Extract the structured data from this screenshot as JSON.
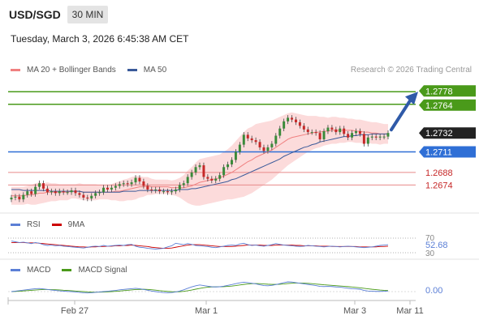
{
  "header": {
    "symbol": "USD/SGD",
    "timeframe": "30 MIN",
    "datetime": "Tuesday, March 3, 2026 6:45:38 AM CET",
    "credit": "Research © 2026 Trading Central"
  },
  "legends": {
    "main": [
      {
        "label": "MA 20 + Bollinger Bands",
        "color": "#f08080"
      },
      {
        "label": "MA 50",
        "color": "#3a5a9a"
      }
    ],
    "rsi": [
      {
        "label": "RSI",
        "color": "#5b7fd6"
      },
      {
        "label": "9MA",
        "color": "#cc0000"
      }
    ],
    "macd": [
      {
        "label": "MACD",
        "color": "#5b7fd6"
      },
      {
        "label": "MACD Signal",
        "color": "#4a9a1a"
      }
    ]
  },
  "colors": {
    "bull": "#3a8a3a",
    "bear": "#c62828",
    "target": "#4a9a1a",
    "pivot": "#2f6fd6",
    "support": "#e88a8a",
    "current": "#222222",
    "arrow": "#2f5aa8",
    "band": "#fbd5d5"
  },
  "chart_data": [
    {
      "type": "candlestick",
      "name": "price",
      "ylim": [
        1.265,
        1.279
      ],
      "x_labels": [
        "Feb 27",
        "Mar 1",
        "Mar 3",
        "Mar 11"
      ],
      "levels": [
        {
          "value": 1.2778,
          "label": "1.2778",
          "kind": "target"
        },
        {
          "value": 1.2764,
          "label": "1.2764",
          "kind": "target"
        },
        {
          "value": 1.2732,
          "label": "1.2732",
          "kind": "current"
        },
        {
          "value": 1.2711,
          "label": "1.2711",
          "kind": "pivot"
        },
        {
          "value": 1.2688,
          "label": "1.2688",
          "kind": "support"
        },
        {
          "value": 1.2674,
          "label": "1.2674",
          "kind": "support"
        }
      ],
      "closes": [
        1.266,
        1.2661,
        1.2658,
        1.2663,
        1.2667,
        1.2664,
        1.2672,
        1.2676,
        1.267,
        1.2666,
        1.2667,
        1.2665,
        1.2667,
        1.2666,
        1.2666,
        1.2668,
        1.2665,
        1.2663,
        1.266,
        1.2659,
        1.2662,
        1.2665,
        1.2666,
        1.2671,
        1.2669,
        1.2671,
        1.2673,
        1.2675,
        1.2676,
        1.2675,
        1.2677,
        1.2682,
        1.2678,
        1.2673,
        1.2669,
        1.2668,
        1.2669,
        1.2667,
        1.2667,
        1.2666,
        1.2667,
        1.2669,
        1.2674,
        1.2676,
        1.2683,
        1.2688,
        1.2694,
        1.2696,
        1.2683,
        1.2681,
        1.2679,
        1.2681,
        1.2685,
        1.2694,
        1.2697,
        1.2702,
        1.2711,
        1.2719,
        1.273,
        1.2726,
        1.2724,
        1.2722,
        1.2716,
        1.2712,
        1.2716,
        1.272,
        1.2729,
        1.2737,
        1.2745,
        1.2749,
        1.2747,
        1.2744,
        1.274,
        1.2736,
        1.2733,
        1.2733,
        1.2732,
        1.2725,
        1.2734,
        1.2738,
        1.2736,
        1.2733,
        1.2737,
        1.2731,
        1.2727,
        1.2732,
        1.2734,
        1.2731,
        1.272,
        1.2727,
        1.2728,
        1.2727,
        1.2728,
        1.2728,
        1.2732
      ],
      "ma20": [
        1.2662,
        1.2662,
        1.2662,
        1.2662,
        1.2663,
        1.2663,
        1.2664,
        1.2665,
        1.2665,
        1.2666,
        1.2666,
        1.2666,
        1.2666,
        1.2666,
        1.2666,
        1.2667,
        1.2667,
        1.2667,
        1.2666,
        1.2666,
        1.2666,
        1.2666,
        1.2666,
        1.2666,
        1.2666,
        1.2666,
        1.2667,
        1.2667,
        1.2668,
        1.2669,
        1.267,
        1.2671,
        1.2672,
        1.2672,
        1.2673,
        1.2672,
        1.2672,
        1.2672,
        1.2672,
        1.2672,
        1.2671,
        1.2671,
        1.2671,
        1.2671,
        1.2672,
        1.2673,
        1.2675,
        1.2677,
        1.2678,
        1.2679,
        1.268,
        1.2681,
        1.2682,
        1.2684,
        1.2686,
        1.2688,
        1.2691,
        1.2694,
        1.2697,
        1.27,
        1.2702,
        1.2705,
        1.2707,
        1.2709,
        1.2711,
        1.2713,
        1.2716,
        1.2719,
        1.2722,
        1.2725,
        1.2727,
        1.2728,
        1.2729,
        1.273,
        1.2731,
        1.2732,
        1.2733,
        1.2733,
        1.2734,
        1.2734,
        1.2735,
        1.2735,
        1.2735,
        1.2735,
        1.2735,
        1.2735,
        1.2734,
        1.2734,
        1.2733,
        1.2733,
        1.2732,
        1.2732,
        1.2731,
        1.2731,
        1.2731
      ],
      "ma50": [
        1.2669,
        1.2669,
        1.2669,
        1.2668,
        1.2668,
        1.2668,
        1.2668,
        1.2668,
        1.2668,
        1.2668,
        1.2667,
        1.2667,
        1.2667,
        1.2667,
        1.2667,
        1.2667,
        1.2667,
        1.2667,
        1.2666,
        1.2666,
        1.2666,
        1.2666,
        1.2666,
        1.2666,
        1.2666,
        1.2666,
        1.2666,
        1.2666,
        1.2667,
        1.2667,
        1.2667,
        1.2667,
        1.2668,
        1.2668,
        1.2668,
        1.2668,
        1.2668,
        1.2668,
        1.2668,
        1.2668,
        1.2668,
        1.2668,
        1.2669,
        1.2669,
        1.2669,
        1.267,
        1.267,
        1.2671,
        1.2672,
        1.2673,
        1.2674,
        1.2675,
        1.2676,
        1.2677,
        1.2678,
        1.268,
        1.2681,
        1.2683,
        1.2685,
        1.2687,
        1.2689,
        1.2691,
        1.2693,
        1.2695,
        1.2697,
        1.2699,
        1.2701,
        1.2703,
        1.2706,
        1.2708,
        1.271,
        1.2712,
        1.2714,
        1.2716,
        1.2717,
        1.2719,
        1.272,
        1.2722,
        1.2723,
        1.2724,
        1.2725,
        1.2726,
        1.2727,
        1.2728,
        1.2728,
        1.2729,
        1.2729,
        1.273,
        1.273,
        1.273,
        1.2731,
        1.2731,
        1.2731,
        1.2731,
        1.2731
      ],
      "bb_width": [
        0.001,
        0.001,
        0.001,
        0.001,
        0.001,
        0.0011,
        0.0012,
        0.0012,
        0.0011,
        0.0011,
        0.001,
        0.001,
        0.0009,
        0.0009,
        0.0009,
        0.0008,
        0.0008,
        0.0009,
        0.0009,
        0.0009,
        0.0009,
        0.0009,
        0.0008,
        0.0008,
        0.0008,
        0.0009,
        0.001,
        0.0011,
        0.0012,
        0.0012,
        0.0013,
        0.0013,
        0.0012,
        0.0011,
        0.001,
        0.0009,
        0.0008,
        0.0008,
        0.0008,
        0.0008,
        0.0008,
        0.0009,
        0.0011,
        0.0014,
        0.0018,
        0.0021,
        0.0024,
        0.0026,
        0.0026,
        0.0026,
        0.0026,
        0.0026,
        0.0026,
        0.0027,
        0.0028,
        0.003,
        0.0032,
        0.0034,
        0.0036,
        0.0037,
        0.0037,
        0.0037,
        0.0036,
        0.0035,
        0.0034,
        0.0033,
        0.0032,
        0.0031,
        0.003,
        0.0029,
        0.0028,
        0.0026,
        0.0024,
        0.0022,
        0.002,
        0.0019,
        0.0018,
        0.0017,
        0.0016,
        0.0015,
        0.0015,
        0.0015,
        0.0014,
        0.0014,
        0.0013,
        0.0013,
        0.0013,
        0.0013,
        0.0013,
        0.0012,
        0.0012,
        0.0012,
        0.0012,
        0.0011,
        0.0011
      ]
    },
    {
      "type": "line",
      "name": "rsi",
      "ylim": [
        30,
        70
      ],
      "ticks": [
        "70",
        "30"
      ],
      "current_label": "52.68",
      "rsi": [
        62,
        60,
        58,
        59,
        57,
        55,
        58,
        56,
        52,
        50,
        51,
        49,
        50,
        48,
        47,
        46,
        45,
        44,
        43,
        45,
        47,
        48,
        47,
        50,
        48,
        49,
        50,
        51,
        50,
        52,
        53,
        48,
        45,
        44,
        42,
        41,
        40,
        41,
        42,
        46,
        49,
        56,
        54,
        52,
        55,
        53,
        50,
        49,
        48,
        47,
        45,
        44,
        46,
        48,
        50,
        51,
        50,
        54,
        56,
        52,
        50,
        51,
        49,
        48,
        50,
        52,
        55,
        53,
        51,
        50,
        49,
        48,
        47,
        48,
        50,
        49,
        48,
        47,
        46,
        47,
        48,
        47,
        46,
        47,
        48,
        47,
        46,
        45,
        44,
        45,
        46,
        48,
        50,
        51,
        52
      ],
      "ma9": [
        58,
        58,
        58,
        58,
        57,
        57,
        57,
        56,
        55,
        54,
        53,
        52,
        51,
        50,
        49,
        48,
        47,
        46,
        46,
        45,
        46,
        46,
        47,
        47,
        48,
        48,
        49,
        49,
        50,
        50,
        51,
        50,
        49,
        48,
        47,
        45,
        44,
        43,
        42,
        42,
        43,
        45,
        47,
        49,
        51,
        52,
        52,
        52,
        51,
        50,
        49,
        48,
        47,
        47,
        47,
        47,
        48,
        49,
        50,
        51,
        51,
        51,
        51,
        50,
        50,
        50,
        51,
        51,
        51,
        51,
        51,
        50,
        50,
        49,
        49,
        49,
        49,
        48,
        48,
        48,
        47,
        47,
        47,
        47,
        47,
        47,
        47,
        46,
        46,
        46,
        46,
        46,
        47,
        47,
        48
      ]
    },
    {
      "type": "line",
      "name": "macd",
      "ylim": [
        -1,
        1
      ],
      "ticks": [
        "0.00"
      ],
      "macd": [
        0.0,
        0.05,
        0.1,
        0.15,
        0.2,
        0.25,
        0.3,
        0.32,
        0.28,
        0.22,
        0.16,
        0.12,
        0.08,
        0.05,
        0.02,
        0.0,
        -0.04,
        -0.08,
        -0.12,
        -0.14,
        -0.12,
        -0.08,
        -0.04,
        0.0,
        0.04,
        0.08,
        0.12,
        0.18,
        0.22,
        0.26,
        0.3,
        0.34,
        0.3,
        0.22,
        0.14,
        0.06,
        0.0,
        -0.06,
        -0.1,
        -0.12,
        -0.1,
        -0.04,
        0.06,
        0.18,
        0.34,
        0.48,
        0.6,
        0.68,
        0.62,
        0.56,
        0.5,
        0.48,
        0.5,
        0.56,
        0.64,
        0.72,
        0.82,
        0.9,
        0.96,
        0.92,
        0.86,
        0.8,
        0.7,
        0.62,
        0.6,
        0.64,
        0.72,
        0.82,
        0.92,
        1.0,
        0.98,
        0.92,
        0.86,
        0.8,
        0.74,
        0.68,
        0.62,
        0.54,
        0.52,
        0.54,
        0.52,
        0.48,
        0.46,
        0.4,
        0.34,
        0.3,
        0.28,
        0.24,
        0.12,
        0.06,
        0.04,
        0.02,
        0.02,
        0.04,
        0.06
      ],
      "signal": [
        0.0,
        0.02,
        0.04,
        0.07,
        0.1,
        0.13,
        0.16,
        0.19,
        0.21,
        0.21,
        0.2,
        0.19,
        0.17,
        0.14,
        0.12,
        0.09,
        0.06,
        0.03,
        0.0,
        -0.03,
        -0.05,
        -0.06,
        -0.06,
        -0.05,
        -0.03,
        0.0,
        0.03,
        0.06,
        0.1,
        0.13,
        0.17,
        0.21,
        0.23,
        0.24,
        0.22,
        0.19,
        0.15,
        0.1,
        0.06,
        0.02,
        -0.01,
        -0.02,
        -0.01,
        0.03,
        0.09,
        0.16,
        0.25,
        0.33,
        0.4,
        0.45,
        0.48,
        0.49,
        0.5,
        0.51,
        0.54,
        0.57,
        0.62,
        0.68,
        0.74,
        0.79,
        0.82,
        0.83,
        0.82,
        0.79,
        0.76,
        0.74,
        0.74,
        0.76,
        0.79,
        0.83,
        0.86,
        0.88,
        0.88,
        0.87,
        0.85,
        0.82,
        0.78,
        0.74,
        0.7,
        0.67,
        0.64,
        0.61,
        0.58,
        0.55,
        0.51,
        0.47,
        0.43,
        0.39,
        0.34,
        0.29,
        0.24,
        0.2,
        0.16,
        0.13,
        0.11
      ]
    }
  ]
}
